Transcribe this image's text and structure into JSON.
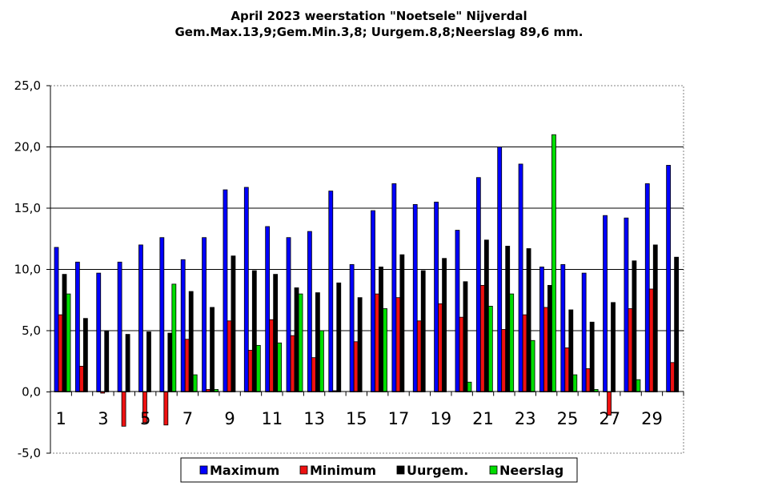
{
  "chart_data": {
    "type": "bar",
    "title": "April 2023 weerstation \"Noetsele\" Nijverdal",
    "subtitle": "Gem.Max.13,9;Gem.Min.3,8; Uurgem.8,8;Neerslag 89,6 mm.",
    "xlabel": "",
    "ylabel": "",
    "ylim": [
      -5,
      25
    ],
    "yticks": [
      25,
      20,
      15,
      10,
      5,
      0,
      -5
    ],
    "ytick_labels": [
      "25,0",
      "20,0",
      "15,0",
      "10,0",
      "5,0",
      "0,0",
      "-5,0"
    ],
    "categories": [
      "1",
      "2",
      "3",
      "4",
      "5",
      "6",
      "7",
      "8",
      "9",
      "10",
      "11",
      "12",
      "13",
      "14",
      "15",
      "16",
      "17",
      "18",
      "19",
      "20",
      "21",
      "22",
      "23",
      "24",
      "25",
      "26",
      "27",
      "28",
      "29",
      "30"
    ],
    "xtick_labels": [
      "1",
      "3",
      "5",
      "7",
      "9",
      "11",
      "13",
      "15",
      "17",
      "19",
      "21",
      "23",
      "25",
      "27",
      "29"
    ],
    "grid": "horizontal",
    "legend_position": "bottom",
    "series": [
      {
        "name": "Maximum",
        "color": "#0000ff",
        "values": [
          11.8,
          10.6,
          9.7,
          10.6,
          12.0,
          12.6,
          10.8,
          12.6,
          16.5,
          16.7,
          13.5,
          12.6,
          13.1,
          16.4,
          10.4,
          14.8,
          17.0,
          15.3,
          15.5,
          13.2,
          17.5,
          20.0,
          18.6,
          10.2,
          10.4,
          9.7,
          14.4,
          14.2,
          17.0,
          18.5
        ]
      },
      {
        "name": "Minimum",
        "color": "#ee1111",
        "values": [
          6.3,
          2.1,
          -0.1,
          -2.8,
          -2.5,
          -2.7,
          4.3,
          0.2,
          5.8,
          3.4,
          5.9,
          4.6,
          2.8,
          0.1,
          4.1,
          8.0,
          7.7,
          5.8,
          7.2,
          6.1,
          8.7,
          5.1,
          6.3,
          6.9,
          3.6,
          1.9,
          -1.9,
          6.8,
          8.4,
          2.4
        ]
      },
      {
        "name": "Uurgem.",
        "color": "#000000",
        "values": [
          9.6,
          6.0,
          5.0,
          4.7,
          4.9,
          4.8,
          8.2,
          6.9,
          11.1,
          9.9,
          9.6,
          8.5,
          8.1,
          8.9,
          7.7,
          10.2,
          11.2,
          9.9,
          10.9,
          9.0,
          12.4,
          11.9,
          11.7,
          8.7,
          6.7,
          5.7,
          7.3,
          10.7,
          12.0,
          11.0
        ]
      },
      {
        "name": "Neerslag",
        "color": "#00dd00",
        "values": [
          8.0,
          0,
          0,
          0,
          0,
          8.8,
          1.4,
          0.2,
          0,
          3.8,
          4.0,
          8.0,
          5.0,
          0,
          0,
          6.8,
          0,
          0,
          0,
          0.8,
          7.0,
          8.0,
          4.2,
          21.0,
          1.4,
          0.2,
          0,
          1.0,
          0,
          0
        ]
      }
    ]
  }
}
